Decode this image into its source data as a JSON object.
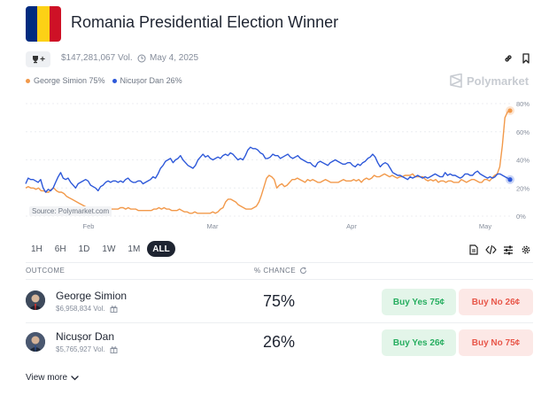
{
  "header": {
    "title": "Romania Presidential Election Winner",
    "flag_colors": [
      "#002B7F",
      "#FCD116",
      "#CE1126"
    ],
    "trophy_label": "+",
    "volume": "$147,281,067 Vol.",
    "date": "May 4, 2025",
    "link_icon": "link-icon",
    "bookmark_icon": "bookmark-icon"
  },
  "legend": [
    {
      "name": "George Simion 75%",
      "color": "#f2994a"
    },
    {
      "name": "Nicușor Dan 26%",
      "color": "#2d58d9"
    }
  ],
  "brand": {
    "name": "Polymarket"
  },
  "chart_source": "Source: Polymarket.com",
  "chart_data": {
    "type": "line",
    "x_ticks": [
      "Feb",
      "Mar",
      "Apr",
      "May"
    ],
    "y_ticks": [
      "80%",
      "60%",
      "40%",
      "20%",
      "0%"
    ],
    "ylim": [
      0,
      80
    ],
    "grid": true,
    "series": [
      {
        "name": "George Simion",
        "color": "#f2994a",
        "values": [
          20,
          21,
          20,
          20,
          19,
          20,
          18,
          18,
          17,
          17,
          19,
          20,
          18,
          17,
          17,
          16,
          14,
          13,
          12,
          11,
          10,
          9,
          8,
          7,
          6,
          5,
          5,
          4,
          4,
          4,
          5,
          4,
          5,
          5,
          5,
          5,
          5,
          6,
          6,
          5,
          6,
          5,
          5,
          5,
          4,
          4,
          4,
          4,
          4,
          4,
          5,
          5,
          6,
          5,
          6,
          5,
          5,
          4,
          4,
          4,
          5,
          4,
          3,
          3,
          2,
          2,
          3,
          2,
          2,
          2,
          2,
          2,
          2,
          3,
          2,
          3,
          5,
          6,
          10,
          12,
          12,
          11,
          10,
          8,
          7,
          6,
          5,
          5,
          5,
          6,
          7,
          10,
          15,
          21,
          27,
          29,
          28,
          26,
          20,
          22,
          23,
          21,
          22,
          24,
          26,
          26,
          27,
          26,
          25,
          24,
          26,
          25,
          26,
          25,
          24,
          24,
          25,
          26,
          25,
          24,
          24,
          24,
          24,
          25,
          26,
          25,
          25,
          25,
          26,
          25,
          26,
          24,
          26,
          27,
          26,
          27,
          29,
          28,
          28,
          29,
          30,
          29,
          28,
          29,
          28,
          27,
          28,
          28,
          29,
          29,
          29,
          30,
          28,
          28,
          28,
          28,
          26,
          25,
          26,
          25,
          26,
          24,
          25,
          25,
          24,
          25,
          25,
          24,
          24,
          24,
          26,
          25,
          24,
          25,
          26,
          26,
          25,
          24,
          24,
          26,
          26,
          25,
          27,
          29,
          30,
          35,
          50,
          70,
          74,
          75
        ]
      },
      {
        "name": "Nicușor Dan",
        "color": "#2d58d9",
        "values": [
          23,
          27,
          26,
          26,
          25,
          24,
          26,
          20,
          17,
          19,
          18,
          20,
          24,
          28,
          31,
          27,
          26,
          27,
          24,
          22,
          20,
          23,
          24,
          25,
          26,
          25,
          22,
          21,
          20,
          18,
          21,
          22,
          24,
          25,
          24,
          25,
          25,
          24,
          25,
          24,
          26,
          27,
          25,
          24,
          24,
          25,
          25,
          23,
          24,
          25,
          26,
          28,
          27,
          30,
          34,
          36,
          39,
          40,
          41,
          38,
          40,
          41,
          43,
          40,
          38,
          36,
          35,
          34,
          36,
          40,
          42,
          44,
          42,
          43,
          41,
          40,
          41,
          42,
          41,
          43,
          44,
          43,
          45,
          44,
          42,
          40,
          41,
          40,
          43,
          47,
          49,
          48,
          48,
          47,
          45,
          44,
          41,
          41,
          42,
          44,
          43,
          43,
          41,
          42,
          43,
          44,
          42,
          41,
          42,
          43,
          41,
          40,
          39,
          38,
          38,
          36,
          35,
          38,
          39,
          38,
          37,
          36,
          38,
          39,
          40,
          39,
          38,
          37,
          37,
          38,
          38,
          36,
          35,
          37,
          36,
          38,
          39,
          41,
          42,
          44,
          42,
          38,
          35,
          37,
          38,
          37,
          34,
          31,
          30,
          29,
          29,
          28,
          27,
          26,
          28,
          27,
          28,
          29,
          28,
          27,
          28,
          27,
          28,
          29,
          30,
          29,
          28,
          28,
          31,
          29,
          30,
          29,
          29,
          28,
          27,
          28,
          30,
          30,
          29,
          29,
          31,
          32,
          30,
          29,
          28,
          27,
          28,
          27,
          28,
          30,
          30,
          29,
          28,
          27,
          26
        ]
      }
    ]
  },
  "ranges": [
    "1H",
    "6H",
    "1D",
    "1W",
    "1M",
    "ALL"
  ],
  "active_range": "ALL",
  "tools": [
    "document-icon",
    "code-icon",
    "settings-sliders-icon",
    "gear-icon"
  ],
  "table": {
    "col_outcome": "OUTCOME",
    "col_chance": "% CHANCE",
    "rows": [
      {
        "name": "George Simion",
        "volume": "$6,958,834 Vol.",
        "chance": "75%",
        "yes": "Buy Yes 75¢",
        "no": "Buy No 26¢"
      },
      {
        "name": "Nicușor Dan",
        "volume": "$5,765,927 Vol.",
        "chance": "26%",
        "yes": "Buy Yes 26¢",
        "no": "Buy No 75¢"
      }
    ]
  },
  "view_more": "View more"
}
